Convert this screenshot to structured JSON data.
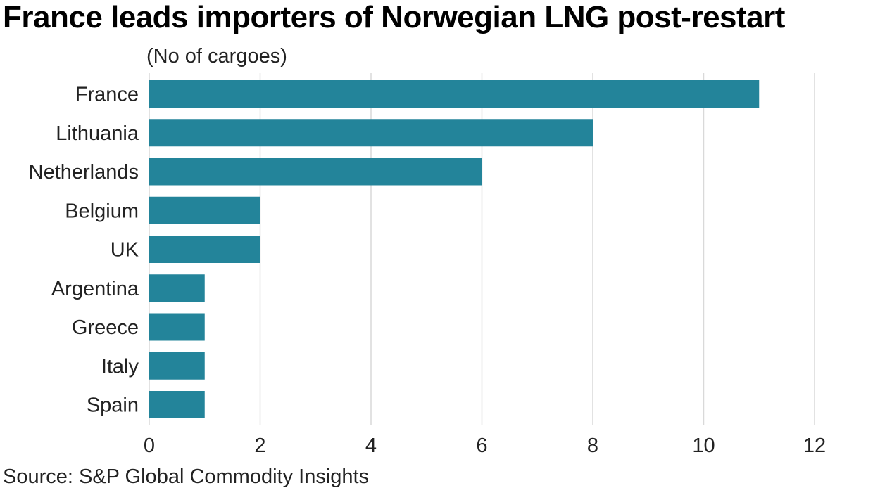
{
  "header": {
    "title": "France leads importers of Norwegian LNG post-restart",
    "subtitle": "(No of cargoes)"
  },
  "footer": {
    "source": "Source: S&P Global Commodity Insights"
  },
  "chart_data": {
    "type": "bar",
    "orientation": "horizontal",
    "categories": [
      "France",
      "Lithuania",
      "Netherlands",
      "Belgium",
      "UK",
      "Argentina",
      "Greece",
      "Italy",
      "Spain"
    ],
    "values": [
      11,
      8,
      6,
      2,
      2,
      1,
      1,
      1,
      1
    ],
    "xlim": [
      0,
      12
    ],
    "xticks": [
      0,
      2,
      4,
      6,
      8,
      10,
      12
    ],
    "grid": "vertical",
    "bar_color": "#23849a",
    "grid_color": "#d9d9d9"
  }
}
